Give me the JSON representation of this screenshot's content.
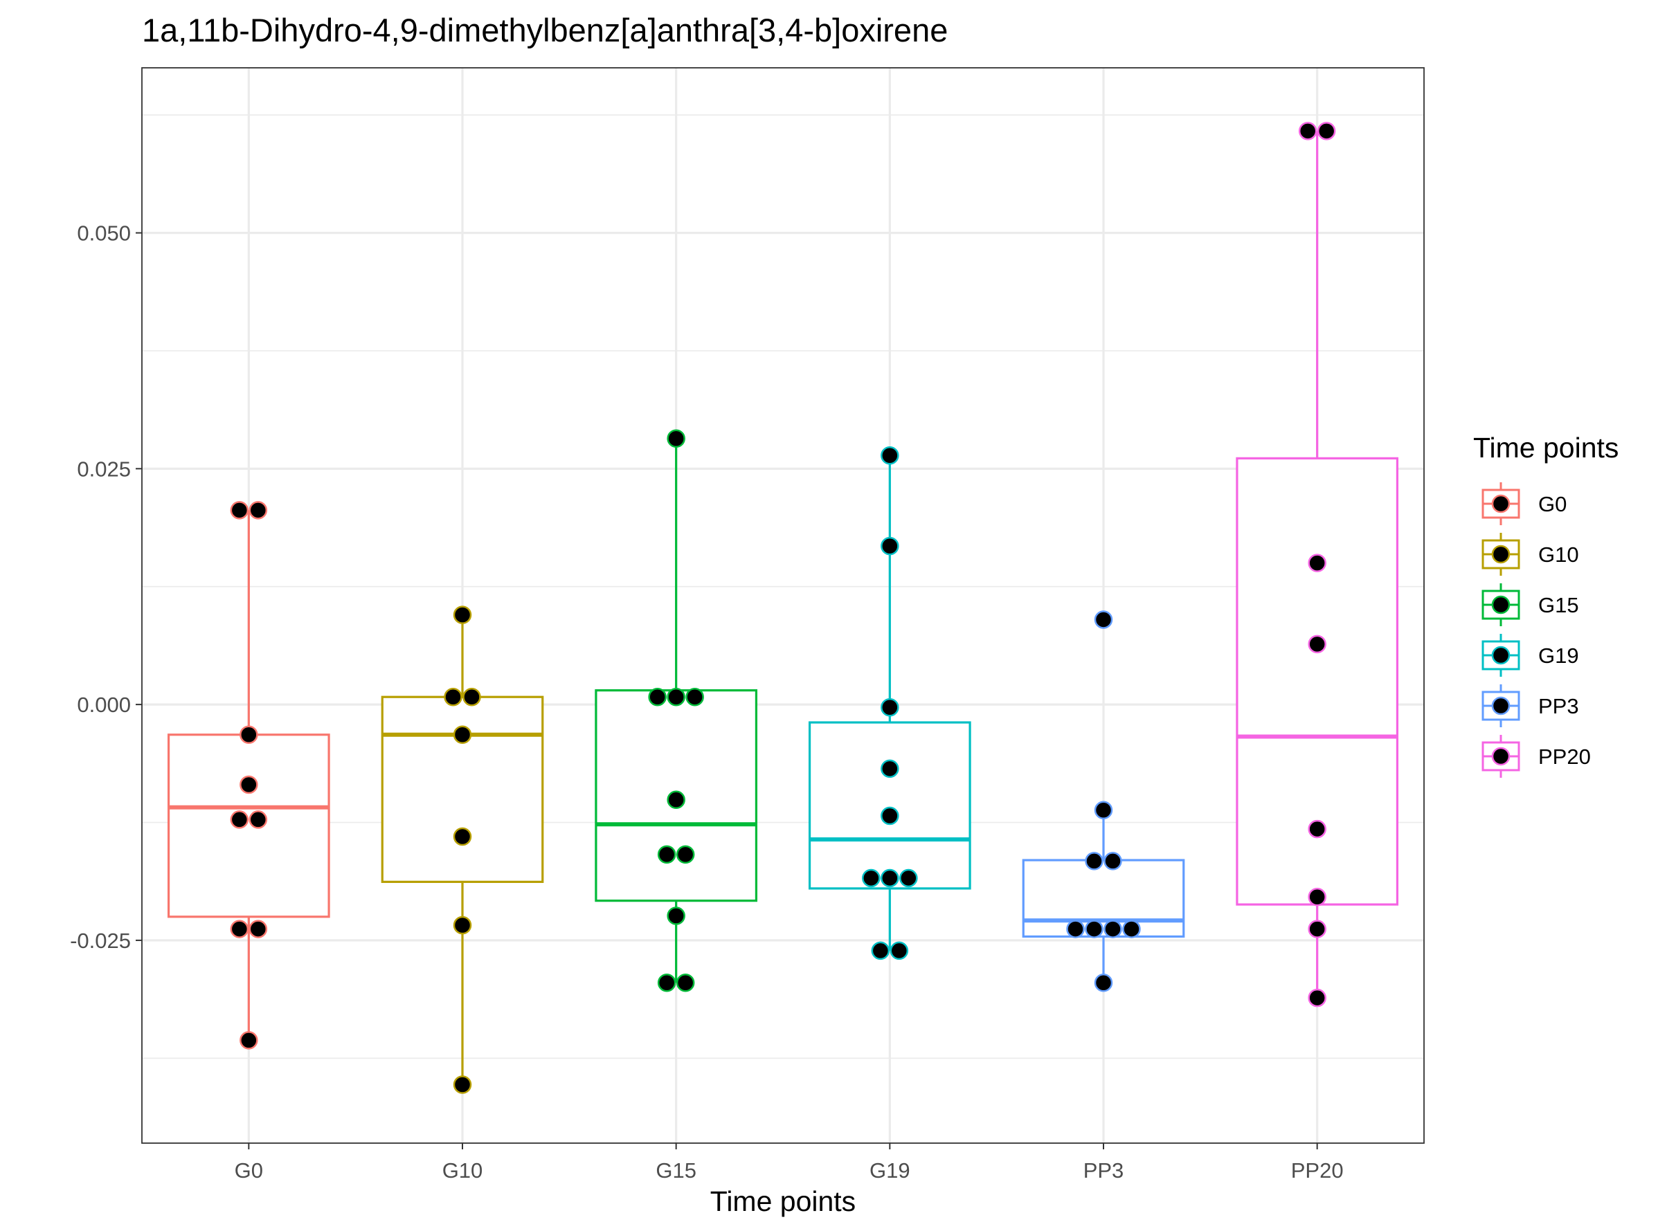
{
  "chart_data": {
    "type": "box",
    "title": "1a,11b-Dihydro-4,9-dimethylbenz[a]anthra[3,4-b]oxirene",
    "xlabel": "Time points",
    "ylabel": "",
    "categories": [
      "G0",
      "G10",
      "G15",
      "G19",
      "PP3",
      "PP20"
    ],
    "ylim": [
      -0.0465,
      0.0675
    ],
    "yticks": [
      -0.025,
      0.0,
      0.025,
      0.05
    ],
    "ytick_labels": [
      "-0.025",
      "0.000",
      "0.025",
      "0.050"
    ],
    "grid": true,
    "legend": {
      "title": "Time points",
      "placement": "right",
      "entries": [
        "G0",
        "G10",
        "G15",
        "G19",
        "PP3",
        "PP20"
      ]
    },
    "colors": {
      "G0": "#F8766D",
      "G10": "#B79F00",
      "G15": "#00BA38",
      "G19": "#00BFC4",
      "PP3": "#619CFF",
      "PP20": "#F564E3",
      "points": "#000000"
    },
    "series": [
      {
        "name": "G0",
        "box": {
          "lower_whisker": -0.0356,
          "q1": -0.0225,
          "median": -0.0109,
          "q3": -0.0032,
          "upper_whisker": 0.0206
        },
        "points": [
          0.0206,
          0.0206,
          -0.0032,
          -0.0085,
          -0.0122,
          -0.0122,
          -0.0238,
          -0.0238,
          -0.0356
        ]
      },
      {
        "name": "G10",
        "box": {
          "lower_whisker": -0.0403,
          "q1": -0.0188,
          "median": -0.0032,
          "q3": 0.0008,
          "upper_whisker": 0.0095
        },
        "points": [
          0.0095,
          0.0008,
          0.0008,
          -0.0032,
          -0.014,
          -0.0234,
          -0.0403
        ]
      },
      {
        "name": "G15",
        "box": {
          "lower_whisker": -0.0295,
          "q1": -0.0208,
          "median": -0.0127,
          "q3": 0.0015,
          "upper_whisker": 0.0282
        },
        "points": [
          0.0282,
          0.0008,
          0.0008,
          0.0008,
          -0.0101,
          -0.0159,
          -0.0159,
          -0.0224,
          -0.0295,
          -0.0295
        ]
      },
      {
        "name": "G19",
        "box": {
          "lower_whisker": -0.0261,
          "q1": -0.0195,
          "median": -0.0143,
          "q3": -0.0019,
          "upper_whisker": 0.0264
        },
        "points": [
          0.0264,
          0.0168,
          -0.0003,
          -0.0068,
          -0.0118,
          -0.0184,
          -0.0184,
          -0.0184,
          -0.0261,
          -0.0261
        ]
      },
      {
        "name": "PP3",
        "box": {
          "lower_whisker": -0.0295,
          "q1": -0.0246,
          "median": -0.0229,
          "q3": -0.0165,
          "upper_whisker": -0.0112
        },
        "points": [
          0.009,
          -0.0112,
          -0.0166,
          -0.0166,
          -0.0238,
          -0.0238,
          -0.0238,
          -0.0238,
          -0.0295
        ]
      },
      {
        "name": "PP20",
        "box": {
          "lower_whisker": -0.0311,
          "q1": -0.0212,
          "median": -0.0034,
          "q3": 0.0261,
          "upper_whisker": 0.0608
        },
        "points": [
          0.0608,
          0.0608,
          0.015,
          0.0064,
          -0.0132,
          -0.0204,
          -0.0238,
          -0.0311
        ]
      }
    ]
  }
}
